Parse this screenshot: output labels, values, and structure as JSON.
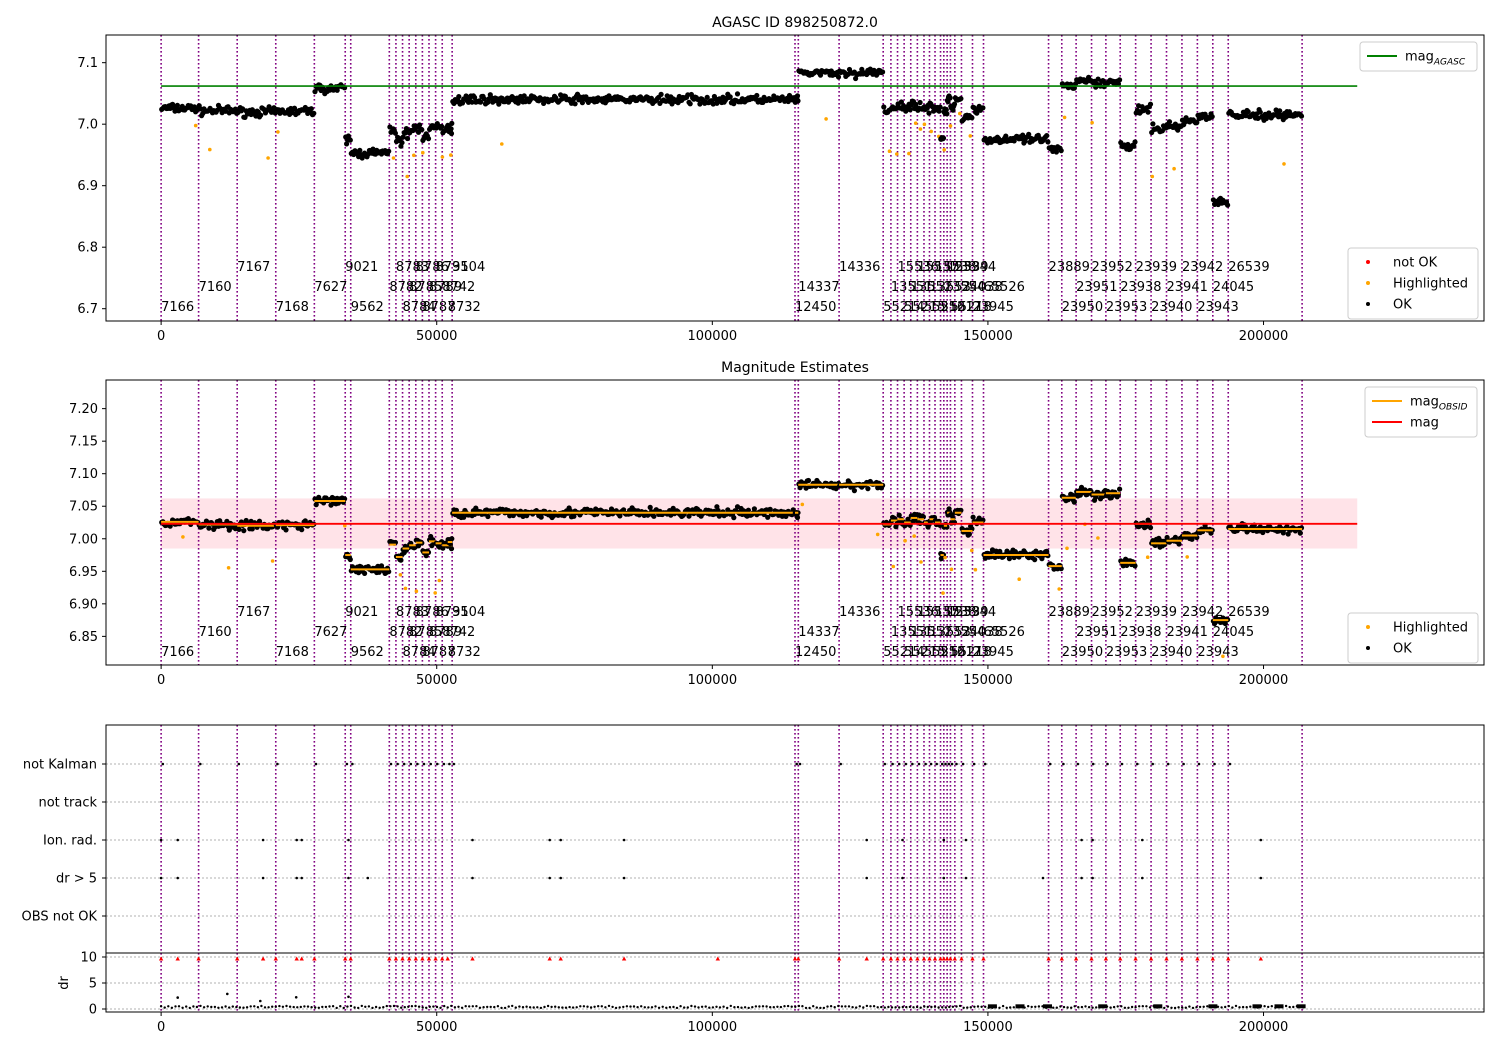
{
  "chart_data": [
    {
      "type": "scatter",
      "title": "AGASC ID 898250872.0",
      "xlim": [
        -10000,
        240000
      ],
      "ylim": [
        6.68,
        7.145
      ],
      "xticks": [
        0,
        50000,
        100000,
        150000,
        200000
      ],
      "yticks": [
        6.7,
        6.8,
        6.9,
        7.0,
        7.1
      ],
      "ref_line": {
        "label": "mag",
        "label_sub": "AGASC",
        "value": 7.062,
        "x_range": [
          0,
          217000
        ],
        "color": "#008000"
      },
      "legend_lines": [
        {
          "label": "mag",
          "label_sub": "AGASC",
          "color": "#008000"
        }
      ],
      "legend_points": [
        {
          "label": "not OK",
          "color": "#ff0000"
        },
        {
          "label": "Highlighted",
          "color": "#ffa500"
        },
        {
          "label": "OK",
          "color": "#000000"
        }
      ],
      "grid": false
    },
    {
      "type": "scatter",
      "title": "Magnitude Estimates",
      "xlim": [
        -10000,
        240000
      ],
      "ylim": [
        6.806,
        7.244
      ],
      "xticks": [
        0,
        50000,
        100000,
        150000,
        200000
      ],
      "yticks": [
        6.85,
        6.9,
        6.95,
        7.0,
        7.05,
        7.1,
        7.15,
        7.2
      ],
      "mean": 7.023,
      "band": [
        6.985,
        7.062
      ],
      "legend_lines": [
        {
          "label": "mag",
          "label_sub": "OBSID",
          "color": "#ffa500"
        },
        {
          "label": "mag",
          "label_sub": "",
          "color": "#ff0000"
        }
      ],
      "legend_points": [
        {
          "label": "Highlighted",
          "color": "#ffa500"
        },
        {
          "label": "OK",
          "color": "#000000"
        }
      ],
      "grid": false
    },
    {
      "type": "scatter",
      "categories": [
        "OBS not OK",
        "dr > 5",
        "Ion. rad.",
        "not track",
        "not Kalman"
      ],
      "xlim": [
        -10000,
        240000
      ],
      "xticks": [
        0,
        50000,
        100000,
        150000,
        200000
      ],
      "dr_ylabel": "dr",
      "dr_ylim": [
        -1,
        10
      ],
      "dr_yticks": [
        0,
        5,
        10
      ],
      "grid": "horizontal dotted"
    }
  ],
  "observations": [
    {
      "obsid": "7166",
      "start": 0,
      "end": 6800,
      "mag": 7.026,
      "level": 0
    },
    {
      "obsid": "7160",
      "start": 6800,
      "end": 13800,
      "mag": 7.022,
      "level": 1
    },
    {
      "obsid": "7167",
      "start": 13800,
      "end": 20800,
      "mag": 7.02,
      "level": 2
    },
    {
      "obsid": "7168",
      "start": 20800,
      "end": 27800,
      "mag": 7.021,
      "level": 0
    },
    {
      "obsid": "7627",
      "start": 27800,
      "end": 33400,
      "mag": 7.058,
      "level": 1
    },
    {
      "obsid": "9021",
      "start": 33400,
      "end": 34400,
      "mag": 6.975,
      "level": 2
    },
    {
      "obsid": "9562",
      "start": 34400,
      "end": 41400,
      "mag": 6.953,
      "level": 0
    },
    {
      "obsid": "8782",
      "start": 41400,
      "end": 42600,
      "mag": 6.991,
      "level": 1
    },
    {
      "obsid": "8783",
      "start": 42600,
      "end": 43800,
      "mag": 6.972,
      "level": 2
    },
    {
      "obsid": "8784",
      "start": 43800,
      "end": 45000,
      "mag": 6.985,
      "level": 0
    },
    {
      "obsid": "8785",
      "start": 45000,
      "end": 46200,
      "mag": 6.99,
      "level": 1
    },
    {
      "obsid": "8786",
      "start": 46200,
      "end": 47400,
      "mag": 6.994,
      "level": 2
    },
    {
      "obsid": "8787",
      "start": 47400,
      "end": 48600,
      "mag": 6.979,
      "level": 0
    },
    {
      "obsid": "8789",
      "start": 48600,
      "end": 49800,
      "mag": 6.996,
      "level": 1
    },
    {
      "obsid": "8731",
      "start": 49800,
      "end": 51000,
      "mag": 6.993,
      "level": 2
    },
    {
      "obsid": "8742",
      "start": 51000,
      "end": 52800,
      "mag": 6.99,
      "level": 1
    },
    {
      "obsid": "8732",
      "start": 52000,
      "end": 52800,
      "mag": 6.995,
      "level": 0
    },
    {
      "obsid": "9504",
      "start": 52800,
      "end": 115000,
      "mag": 7.04,
      "level": 2
    },
    {
      "obsid": "12450",
      "start": 115000,
      "end": 115600,
      "mag": 7.04,
      "level": 0
    },
    {
      "obsid": "14337",
      "start": 115600,
      "end": 123000,
      "mag": 7.083,
      "level": 1
    },
    {
      "obsid": "14336",
      "start": 123000,
      "end": 131000,
      "mag": 7.083,
      "level": 2
    },
    {
      "obsid": "55214",
      "start": 131000,
      "end": 132400,
      "mag": 7.022,
      "level": 0
    },
    {
      "obsid": "13551",
      "start": 132400,
      "end": 133600,
      "mag": 7.028,
      "level": 1
    },
    {
      "obsid": "15536",
      "start": 133600,
      "end": 134800,
      "mag": 7.03,
      "level": 2
    },
    {
      "obsid": "55215",
      "start": 134800,
      "end": 136000,
      "mag": 7.025,
      "level": 0
    },
    {
      "obsid": "13552",
      "start": 136000,
      "end": 137200,
      "mag": 7.032,
      "level": 1
    },
    {
      "obsid": "15537",
      "start": 137200,
      "end": 138400,
      "mag": 7.03,
      "level": 2
    },
    {
      "obsid": "55216",
      "start": 138400,
      "end": 139400,
      "mag": 7.025,
      "level": 0
    },
    {
      "obsid": "13553",
      "start": 139400,
      "end": 140400,
      "mag": 7.03,
      "level": 1
    },
    {
      "obsid": "15538",
      "start": 140400,
      "end": 141400,
      "mag": 7.025,
      "level": 2
    },
    {
      "obsid": "55217",
      "start": 141400,
      "end": 142000,
      "mag": 6.975,
      "level": 0
    },
    {
      "obsid": "13554",
      "start": 142000,
      "end": 142600,
      "mag": 7.02,
      "level": 1
    },
    {
      "obsid": "15539",
      "start": 142600,
      "end": 143200,
      "mag": 7.04,
      "level": 2
    },
    {
      "obsid": "55218",
      "start": 143200,
      "end": 144000,
      "mag": 7.03,
      "level": 0
    },
    {
      "obsid": "23944",
      "start": 144000,
      "end": 145200,
      "mag": 7.04,
      "level": 2
    },
    {
      "obsid": "24038",
      "start": 145200,
      "end": 147200,
      "mag": 7.012,
      "level": 1
    },
    {
      "obsid": "23945",
      "start": 147200,
      "end": 149200,
      "mag": 7.025,
      "level": 0
    },
    {
      "obsid": "65526",
      "start": 149200,
      "end": 161000,
      "mag": 6.975,
      "level": 1
    },
    {
      "obsid": "23889",
      "start": 161000,
      "end": 163400,
      "mag": 6.958,
      "level": 2
    },
    {
      "obsid": "23950",
      "start": 163400,
      "end": 166000,
      "mag": 7.063,
      "level": 0
    },
    {
      "obsid": "23951",
      "start": 166000,
      "end": 168800,
      "mag": 7.072,
      "level": 1
    },
    {
      "obsid": "23952",
      "start": 168800,
      "end": 171400,
      "mag": 7.068,
      "level": 2
    },
    {
      "obsid": "23953",
      "start": 171400,
      "end": 174000,
      "mag": 7.07,
      "level": 0
    },
    {
      "obsid": "23938",
      "start": 174000,
      "end": 176800,
      "mag": 6.963,
      "level": 1
    },
    {
      "obsid": "23939",
      "start": 176800,
      "end": 179600,
      "mag": 7.023,
      "level": 2
    },
    {
      "obsid": "23940",
      "start": 179600,
      "end": 182400,
      "mag": 6.993,
      "level": 0
    },
    {
      "obsid": "23941",
      "start": 182400,
      "end": 185200,
      "mag": 6.997,
      "level": 1
    },
    {
      "obsid": "23942",
      "start": 185200,
      "end": 188000,
      "mag": 7.005,
      "level": 2
    },
    {
      "obsid": "23943",
      "start": 188000,
      "end": 190800,
      "mag": 7.013,
      "level": 0
    },
    {
      "obsid": "24045",
      "start": 190800,
      "end": 193600,
      "mag": 6.875,
      "level": 1
    },
    {
      "obsid": "26539",
      "start": 193600,
      "end": 207000,
      "mag": 7.015,
      "level": 2
    }
  ],
  "obs_boundaries": [
    0,
    6800,
    13800,
    20800,
    27800,
    33400,
    34400,
    41400,
    42600,
    43800,
    45000,
    46200,
    47400,
    48600,
    49800,
    51000,
    52800,
    115000,
    115600,
    123000,
    131000,
    132400,
    133600,
    134800,
    136000,
    137200,
    138400,
    139400,
    140400,
    141400,
    142000,
    142600,
    143200,
    144000,
    145200,
    147200,
    149200,
    161000,
    163400,
    166000,
    168800,
    171400,
    174000,
    176800,
    179600,
    182400,
    185200,
    188000,
    190800,
    193600,
    207000
  ]
}
